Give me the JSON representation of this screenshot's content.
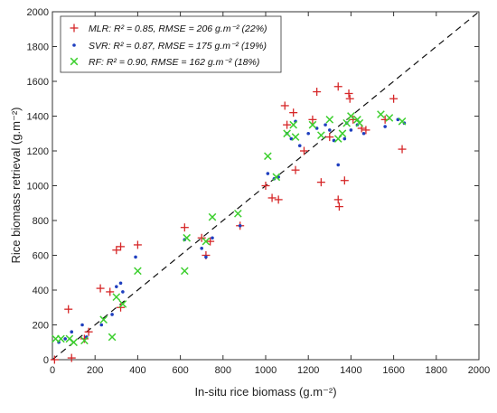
{
  "chart_data": {
    "type": "scatter",
    "xlabel": "In-situ rice biomass (g.m⁻²)",
    "ylabel": "Rice biomass retrieval (g.m⁻²)",
    "xlim": [
      0,
      2000
    ],
    "ylim": [
      0,
      2000
    ],
    "xticks": [
      "0",
      "200",
      "400",
      "600",
      "800",
      "1000",
      "1200",
      "1400",
      "1600",
      "1800",
      "2000"
    ],
    "yticks": [
      "0",
      "200",
      "400",
      "600",
      "800",
      "1000",
      "1200",
      "1400",
      "1600",
      "1800",
      "2000"
    ],
    "grid": false,
    "reference_line": {
      "style": "dashed",
      "from": [
        0,
        0
      ],
      "to": [
        2000,
        2000
      ]
    },
    "legend_position": "top-left",
    "series": [
      {
        "name": "MLR: R² = 0.85, RMSE = 206 g.m⁻² (22%)",
        "marker": "plus",
        "color": "#d62728",
        "points": [
          [
            10,
            0
          ],
          [
            75,
            290
          ],
          [
            90,
            10
          ],
          [
            150,
            120
          ],
          [
            170,
            160
          ],
          [
            225,
            410
          ],
          [
            270,
            390
          ],
          [
            300,
            630
          ],
          [
            320,
            650
          ],
          [
            320,
            300
          ],
          [
            400,
            660
          ],
          [
            620,
            760
          ],
          [
            700,
            700
          ],
          [
            720,
            600
          ],
          [
            740,
            680
          ],
          [
            880,
            770
          ],
          [
            1000,
            1000
          ],
          [
            1030,
            930
          ],
          [
            1060,
            920
          ],
          [
            1090,
            1460
          ],
          [
            1100,
            1350
          ],
          [
            1130,
            1420
          ],
          [
            1140,
            1090
          ],
          [
            1180,
            1200
          ],
          [
            1220,
            1380
          ],
          [
            1240,
            1540
          ],
          [
            1260,
            1020
          ],
          [
            1300,
            1280
          ],
          [
            1340,
            1570
          ],
          [
            1340,
            920
          ],
          [
            1345,
            880
          ],
          [
            1370,
            1030
          ],
          [
            1390,
            1530
          ],
          [
            1395,
            1500
          ],
          [
            1410,
            1380
          ],
          [
            1450,
            1330
          ],
          [
            1470,
            1320
          ],
          [
            1560,
            1380
          ],
          [
            1600,
            1500
          ],
          [
            1640,
            1210
          ]
        ]
      },
      {
        "name": "SVR: R² = 0.87, RMSE = 175 g.m⁻² (19%)",
        "marker": "dot",
        "color": "#1f3fbf",
        "points": [
          [
            30,
            100
          ],
          [
            60,
            120
          ],
          [
            90,
            160
          ],
          [
            140,
            200
          ],
          [
            160,
            130
          ],
          [
            230,
            200
          ],
          [
            280,
            260
          ],
          [
            300,
            420
          ],
          [
            320,
            440
          ],
          [
            330,
            390
          ],
          [
            390,
            590
          ],
          [
            620,
            690
          ],
          [
            700,
            640
          ],
          [
            720,
            590
          ],
          [
            750,
            700
          ],
          [
            880,
            770
          ],
          [
            1010,
            1070
          ],
          [
            1040,
            1040
          ],
          [
            1060,
            1050
          ],
          [
            1100,
            1300
          ],
          [
            1120,
            1270
          ],
          [
            1140,
            1370
          ],
          [
            1160,
            1230
          ],
          [
            1200,
            1300
          ],
          [
            1240,
            1330
          ],
          [
            1280,
            1350
          ],
          [
            1300,
            1320
          ],
          [
            1320,
            1260
          ],
          [
            1340,
            1120
          ],
          [
            1370,
            1270
          ],
          [
            1380,
            1360
          ],
          [
            1400,
            1320
          ],
          [
            1430,
            1350
          ],
          [
            1460,
            1300
          ],
          [
            1560,
            1340
          ],
          [
            1620,
            1380
          ],
          [
            1650,
            1360
          ]
        ]
      },
      {
        "name": "RF:   R² = 0.90,   RMSE = 162 g.m⁻² (18%)",
        "marker": "x",
        "color": "#3ccf2e",
        "points": [
          [
            15,
            120
          ],
          [
            40,
            120
          ],
          [
            80,
            120
          ],
          [
            100,
            100
          ],
          [
            150,
            110
          ],
          [
            240,
            230
          ],
          [
            280,
            130
          ],
          [
            300,
            360
          ],
          [
            330,
            320
          ],
          [
            400,
            510
          ],
          [
            620,
            510
          ],
          [
            630,
            700
          ],
          [
            720,
            680
          ],
          [
            750,
            820
          ],
          [
            870,
            840
          ],
          [
            1010,
            1170
          ],
          [
            1050,
            1050
          ],
          [
            1100,
            1300
          ],
          [
            1130,
            1350
          ],
          [
            1140,
            1280
          ],
          [
            1220,
            1350
          ],
          [
            1260,
            1290
          ],
          [
            1300,
            1380
          ],
          [
            1340,
            1270
          ],
          [
            1360,
            1300
          ],
          [
            1380,
            1360
          ],
          [
            1400,
            1400
          ],
          [
            1430,
            1380
          ],
          [
            1440,
            1360
          ],
          [
            1540,
            1410
          ],
          [
            1580,
            1390
          ],
          [
            1640,
            1370
          ]
        ]
      }
    ]
  }
}
